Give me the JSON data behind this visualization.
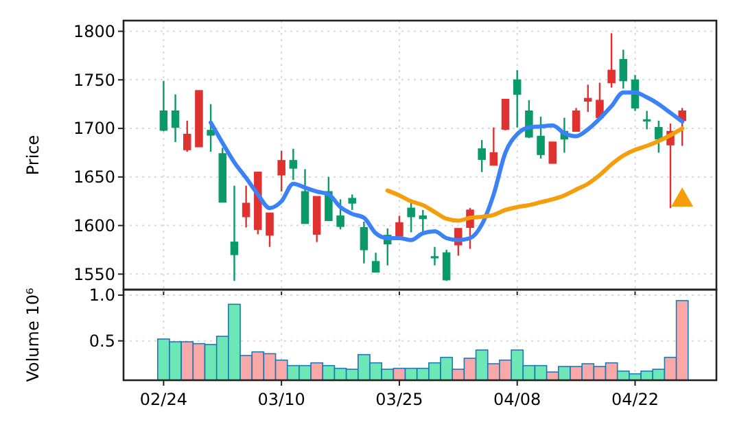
{
  "chart_data": [
    {
      "type": "candlestick",
      "ylabel": "Price",
      "grid": true,
      "tick_labels": "y",
      "categories": [
        null,
        null,
        null,
        null,
        null,
        null,
        null,
        null,
        null,
        null,
        null,
        null,
        null,
        null,
        null,
        null,
        null,
        null,
        null,
        null,
        null,
        null,
        null,
        null,
        null,
        null,
        null,
        null,
        null,
        null,
        null,
        null,
        null,
        null,
        null,
        null,
        null,
        null,
        null,
        null,
        null,
        null,
        null,
        null,
        null
      ],
      "ohlc": [
        [
          1698,
          1749,
          1697,
          1718
        ],
        [
          1701,
          1735,
          1686,
          1718
        ],
        [
          1694,
          1708,
          1676,
          1678
        ],
        [
          1739,
          1739,
          1681,
          1681
        ],
        [
          1693,
          1725,
          1676,
          1698
        ],
        [
          1624,
          1680,
          1624,
          1674
        ],
        [
          1570,
          1641,
          1543,
          1583
        ],
        [
          1623,
          1641,
          1598,
          1609
        ],
        [
          1655,
          1655,
          1591,
          1596
        ],
        [
          1613,
          1613,
          1578,
          1590
        ],
        [
          1667,
          1677,
          1635,
          1652
        ],
        [
          1659,
          1679,
          1647,
          1667
        ],
        [
          1602,
          1658,
          1602,
          1635
        ],
        [
          1630,
          1630,
          1583,
          1591
        ],
        [
          1605,
          1650,
          1605,
          1635
        ],
        [
          1599,
          1627,
          1596,
          1610
        ],
        [
          1623,
          1632,
          1616,
          1628
        ],
        [
          1575,
          1604,
          1561,
          1598
        ],
        [
          1552,
          1572,
          1552,
          1563
        ],
        [
          1581,
          1597,
          1559,
          1590
        ],
        [
          1603,
          1610,
          1585,
          1589
        ],
        [
          1609,
          1625,
          1593,
          1618
        ],
        [
          1607,
          1616,
          1594,
          1610
        ],
        [
          1567,
          1578,
          1559,
          1568
        ],
        [
          1544,
          1575,
          1543,
          1572
        ],
        [
          1597,
          1597,
          1569,
          1580
        ],
        [
          1616,
          1618,
          1576,
          1598
        ],
        [
          1668,
          1688,
          1655,
          1679
        ],
        [
          1675,
          1701,
          1662,
          1662
        ],
        [
          1730,
          1730,
          1698,
          1699
        ],
        [
          1735,
          1760,
          1701,
          1750
        ],
        [
          1691,
          1729,
          1690,
          1718
        ],
        [
          1673,
          1712,
          1669,
          1692
        ],
        [
          1686,
          1686,
          1664,
          1664
        ],
        [
          1689,
          1711,
          1675,
          1697
        ],
        [
          1718,
          1721,
          1697,
          1697
        ],
        [
          1731,
          1745,
          1717,
          1728
        ],
        [
          1729,
          1747,
          1709,
          1711
        ],
        [
          1760,
          1798,
          1742,
          1747
        ],
        [
          1749,
          1781,
          1741,
          1771
        ],
        [
          1721,
          1755,
          1718,
          1750
        ],
        [
          1708,
          1718,
          1699,
          1709
        ],
        [
          1689,
          1708,
          1675,
          1701
        ],
        [
          1697,
          1705,
          1618,
          1683
        ],
        [
          1718,
          1721,
          1682,
          1708
        ]
      ],
      "series": [
        {
          "type": "line",
          "color": "#3b82f6",
          "values": [
            null,
            null,
            null,
            null,
            1706,
            1685,
            1665,
            1649,
            1632,
            1618,
            1625,
            1643,
            1639,
            1635,
            1632,
            1619,
            1612,
            1608,
            1592,
            1587,
            1587,
            1585,
            1592,
            1594,
            1587,
            1585,
            1587,
            1601,
            1632,
            1675,
            1694,
            1701,
            1702,
            1703,
            1695,
            1692,
            1699,
            1710,
            1723,
            1737,
            1737,
            1732,
            1725,
            1716,
            1707
          ]
        },
        {
          "type": "line",
          "color": "#f59e0b",
          "values": [
            null,
            null,
            null,
            null,
            null,
            null,
            null,
            null,
            null,
            null,
            null,
            null,
            null,
            null,
            null,
            null,
            null,
            null,
            null,
            1636,
            1631,
            1625,
            1621,
            1614,
            1607,
            1605,
            1608,
            1609,
            1611,
            1616,
            1619,
            1621,
            1624,
            1627,
            1631,
            1637,
            1643,
            1652,
            1663,
            1672,
            1678,
            1682,
            1687,
            1693,
            1700
          ]
        },
        {
          "type": "scatter",
          "marker": "triangle",
          "color": "#f59e0b",
          "values": [
            null,
            null,
            null,
            null,
            null,
            null,
            null,
            null,
            null,
            null,
            null,
            null,
            null,
            null,
            null,
            null,
            null,
            null,
            null,
            null,
            null,
            null,
            null,
            null,
            null,
            null,
            null,
            null,
            null,
            null,
            null,
            null,
            null,
            null,
            null,
            null,
            null,
            null,
            null,
            null,
            null,
            null,
            null,
            null,
            1628
          ]
        }
      ],
      "ylim": [
        1534,
        1811
      ],
      "yticks": [
        1550,
        1600,
        1650,
        1700,
        1750,
        1800
      ]
    },
    {
      "type": "bar",
      "ylabel": "Volume  10⁶",
      "grid": true,
      "categories": [
        "02/24",
        null,
        null,
        null,
        null,
        null,
        null,
        null,
        null,
        null,
        "03/10",
        null,
        null,
        null,
        null,
        null,
        null,
        null,
        null,
        null,
        "03/25",
        null,
        null,
        null,
        null,
        null,
        null,
        null,
        null,
        null,
        "04/08",
        null,
        null,
        null,
        null,
        null,
        null,
        null,
        null,
        null,
        "04/22",
        null,
        null,
        null,
        null
      ],
      "values": [
        0.52,
        0.49,
        0.49,
        0.47,
        0.46,
        0.55,
        0.9,
        0.34,
        0.38,
        0.36,
        0.29,
        0.23,
        0.23,
        0.26,
        0.23,
        0.2,
        0.19,
        0.35,
        0.26,
        0.19,
        0.2,
        0.2,
        0.2,
        0.26,
        0.32,
        0.19,
        0.31,
        0.4,
        0.25,
        0.29,
        0.4,
        0.23,
        0.23,
        0.16,
        0.22,
        0.22,
        0.25,
        0.22,
        0.26,
        0.17,
        0.14,
        0.17,
        0.19,
        0.32,
        0.94
      ],
      "colors": [
        "#6ee7b7",
        "#6ee7b7",
        "#f9a8a8",
        "#f9a8a8",
        "#6ee7b7",
        "#6ee7b7",
        "#6ee7b7",
        "#f9a8a8",
        "#f9a8a8",
        "#f9a8a8",
        "#f9a8a8",
        "#6ee7b7",
        "#6ee7b7",
        "#f9a8a8",
        "#6ee7b7",
        "#6ee7b7",
        "#6ee7b7",
        "#6ee7b7",
        "#6ee7b7",
        "#6ee7b7",
        "#f9a8a8",
        "#6ee7b7",
        "#6ee7b7",
        "#6ee7b7",
        "#6ee7b7",
        "#f9a8a8",
        "#f9a8a8",
        "#6ee7b7",
        "#f9a8a8",
        "#f9a8a8",
        "#6ee7b7",
        "#6ee7b7",
        "#6ee7b7",
        "#f9a8a8",
        "#6ee7b7",
        "#f9a8a8",
        "#f9a8a8",
        "#f9a8a8",
        "#f9a8a8",
        "#6ee7b7",
        "#6ee7b7",
        "#6ee7b7",
        "#6ee7b7",
        "#f9a8a8",
        "#f9a8a8"
      ],
      "ylim": [
        0.07,
        1.06
      ],
      "yticks": [
        0.5,
        {
          "value": 1.0,
          "label": "1.0"
        }
      ]
    }
  ]
}
